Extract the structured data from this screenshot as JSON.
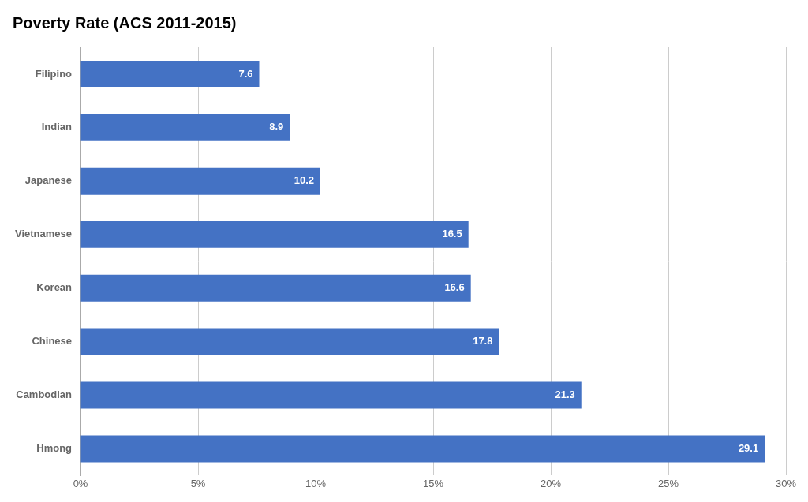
{
  "chart_data": {
    "type": "bar",
    "orientation": "horizontal",
    "title": "Poverty Rate (ACS 2011-2015)",
    "categories": [
      "Hmong",
      "Cambodian",
      "Chinese",
      "Korean",
      "Vietnamese",
      "Japanese",
      "Indian",
      "Filipino"
    ],
    "values": [
      29.1,
      21.3,
      17.8,
      16.6,
      16.5,
      10.2,
      8.9,
      7.6
    ],
    "color": "#4472C4",
    "xlim": [
      0,
      30
    ],
    "xticks": [
      {
        "value": 0,
        "label": "0%"
      },
      {
        "value": 5,
        "label": "5%"
      },
      {
        "value": 10,
        "label": "10%"
      },
      {
        "value": 15,
        "label": "15%"
      },
      {
        "value": 20,
        "label": "20%"
      },
      {
        "value": 25,
        "label": "25%"
      },
      {
        "value": 30,
        "label": "30%"
      }
    ],
    "grid": true,
    "data_labels": true
  }
}
